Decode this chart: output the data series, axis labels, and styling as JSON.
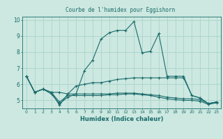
{
  "title": "Courbe de l'humidex pour Eggishorn",
  "xlabel": "Humidex (Indice chaleur)",
  "bg_color": "#cce8e0",
  "line_color": "#1a6b6b",
  "grid_color": "#aad4cc",
  "xlim": [
    -0.5,
    23.5
  ],
  "ylim": [
    4.5,
    10.2
  ],
  "yticks": [
    5,
    6,
    7,
    8,
    9,
    10
  ],
  "xticks": [
    0,
    1,
    2,
    3,
    4,
    5,
    6,
    7,
    8,
    9,
    10,
    11,
    12,
    13,
    14,
    15,
    16,
    17,
    18,
    19,
    20,
    21,
    22,
    23
  ],
  "lines": [
    {
      "x": [
        0,
        1,
        2,
        3,
        4,
        5,
        6,
        7,
        8,
        9,
        10,
        11,
        12,
        13,
        14,
        15,
        16,
        17,
        18,
        19,
        20,
        21,
        22,
        23
      ],
      "y": [
        6.5,
        5.5,
        5.7,
        5.5,
        4.7,
        5.4,
        5.4,
        6.85,
        7.5,
        8.8,
        9.2,
        9.35,
        9.35,
        9.9,
        7.95,
        8.05,
        9.15,
        6.5,
        6.5,
        6.5,
        5.3,
        5.15,
        4.8,
        4.9
      ]
    },
    {
      "x": [
        0,
        1,
        2,
        3,
        4,
        5,
        6,
        7,
        8,
        9,
        10,
        11,
        12,
        13,
        14,
        15,
        16,
        17,
        18,
        19,
        20,
        21,
        22,
        23
      ],
      "y": [
        6.5,
        5.5,
        5.7,
        5.5,
        5.5,
        5.4,
        5.9,
        6.0,
        6.1,
        6.1,
        6.2,
        6.3,
        6.35,
        6.4,
        6.4,
        6.4,
        6.4,
        6.4,
        6.4,
        6.4,
        5.3,
        5.15,
        4.8,
        4.9
      ]
    },
    {
      "x": [
        0,
        1,
        2,
        3,
        4,
        5,
        6,
        7,
        8,
        9,
        10,
        11,
        12,
        13,
        14,
        15,
        16,
        17,
        18,
        19,
        20,
        21,
        22,
        23
      ],
      "y": [
        6.5,
        5.5,
        5.7,
        5.4,
        4.8,
        5.2,
        5.4,
        5.4,
        5.4,
        5.4,
        5.4,
        5.45,
        5.45,
        5.45,
        5.4,
        5.35,
        5.3,
        5.2,
        5.15,
        5.1,
        5.1,
        5.05,
        4.8,
        4.9
      ]
    },
    {
      "x": [
        0,
        1,
        2,
        3,
        4,
        5,
        6,
        7,
        8,
        9,
        10,
        11,
        12,
        13,
        14,
        15,
        16,
        17,
        18,
        19,
        20,
        21,
        22,
        23
      ],
      "y": [
        6.5,
        5.5,
        5.7,
        5.5,
        4.9,
        5.3,
        5.3,
        5.3,
        5.3,
        5.3,
        5.35,
        5.35,
        5.4,
        5.4,
        5.35,
        5.3,
        5.2,
        5.1,
        5.05,
        5.0,
        5.0,
        4.95,
        4.75,
        4.85
      ]
    }
  ]
}
